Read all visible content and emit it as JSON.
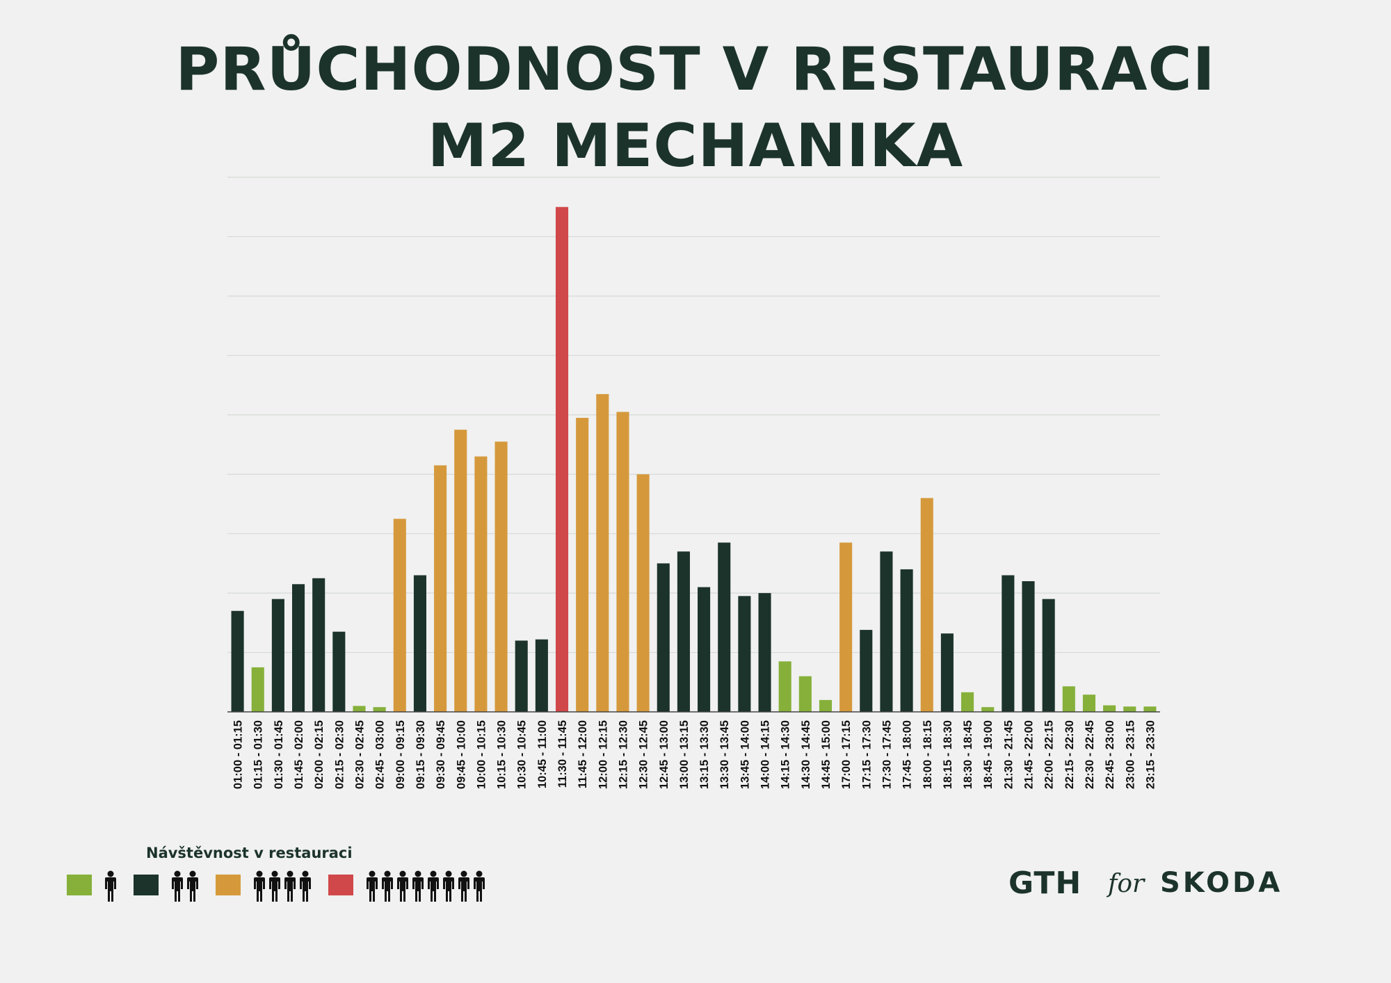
{
  "title": {
    "line1": "PRŮCHODNOST V RESTAURACI",
    "line2": "M2 MECHANIKA"
  },
  "legend": {
    "title": "Návštěvnost v restauraci",
    "items": [
      {
        "color": "#86b03a",
        "people": 1
      },
      {
        "color": "#1c332b",
        "people": 2
      },
      {
        "color": "#d5993c",
        "people": 4
      },
      {
        "color": "#d1484a",
        "people": 8
      }
    ]
  },
  "logos": {
    "gth": "GTH",
    "for": "for",
    "skoda": "SKODA"
  },
  "chart_data": {
    "type": "bar",
    "ylim": [
      0,
      90
    ],
    "gridlines": 9,
    "colors": {
      "green": "#86b03a",
      "dark": "#1c332b",
      "orange": "#d5993c",
      "red": "#d1484a"
    },
    "categories": [
      "01:00 - 01:15",
      "01:15 - 01:30",
      "01:30 - 01:45",
      "01:45 - 02:00",
      "02:00 - 02:15",
      "02:15 - 02:30",
      "02:30 - 02:45",
      "02:45 - 03:00",
      "09:00 - 09:15",
      "09:15 - 09:30",
      "09:30 - 09:45",
      "09:45 - 10:00",
      "10:00 - 10:15",
      "10:15 - 10:30",
      "10:30 - 10:45",
      "10:45 - 11:00",
      "11:30 - 11:45",
      "11:45 - 12:00",
      "12:00 - 12:15",
      "12:15 - 12:30",
      "12:30 - 12:45",
      "12:45 - 13:00",
      "13:00 - 13:15",
      "13:15 - 13:30",
      "13:30 - 13:45",
      "13:45 - 14:00",
      "14:00 - 14:15",
      "14:15 - 14:30",
      "14:30 - 14:45",
      "14:45 - 15:00",
      "17:00 - 17:15",
      "17:15 - 17:30",
      "17:30 - 17:45",
      "17:45 - 18:00",
      "18:00 - 18:15",
      "18:15 - 18:30",
      "18:30 - 18:45",
      "18:45 - 19:00",
      "21:30 - 21:45",
      "21:45 - 22:00",
      "22:00 - 22:15",
      "22:15 - 22:30",
      "22:30 - 22:45",
      "22:45 - 23:00",
      "23:00 - 23:15",
      "23:15 - 23:30"
    ],
    "values": [
      17,
      7.5,
      19,
      21.5,
      22.5,
      13.5,
      1,
      0.8,
      32.5,
      23,
      41.5,
      47.5,
      43,
      45.5,
      12,
      12.2,
      85,
      49.5,
      53.5,
      50.5,
      40,
      25,
      27,
      21,
      28.5,
      19.5,
      20,
      8.5,
      6,
      2,
      28.5,
      13.8,
      27,
      24,
      36,
      13.2,
      3.3,
      0.8,
      23,
      22,
      19,
      4.3,
      2.9,
      1.1,
      0.9,
      0.9
    ],
    "bar_colors": [
      "dark",
      "green",
      "dark",
      "dark",
      "dark",
      "dark",
      "green",
      "green",
      "orange",
      "dark",
      "orange",
      "orange",
      "orange",
      "orange",
      "dark",
      "dark",
      "red",
      "orange",
      "orange",
      "orange",
      "orange",
      "dark",
      "dark",
      "dark",
      "dark",
      "dark",
      "dark",
      "green",
      "green",
      "green",
      "orange",
      "dark",
      "dark",
      "dark",
      "orange",
      "dark",
      "green",
      "green",
      "dark",
      "dark",
      "dark",
      "green",
      "green",
      "green",
      "green",
      "green"
    ]
  }
}
